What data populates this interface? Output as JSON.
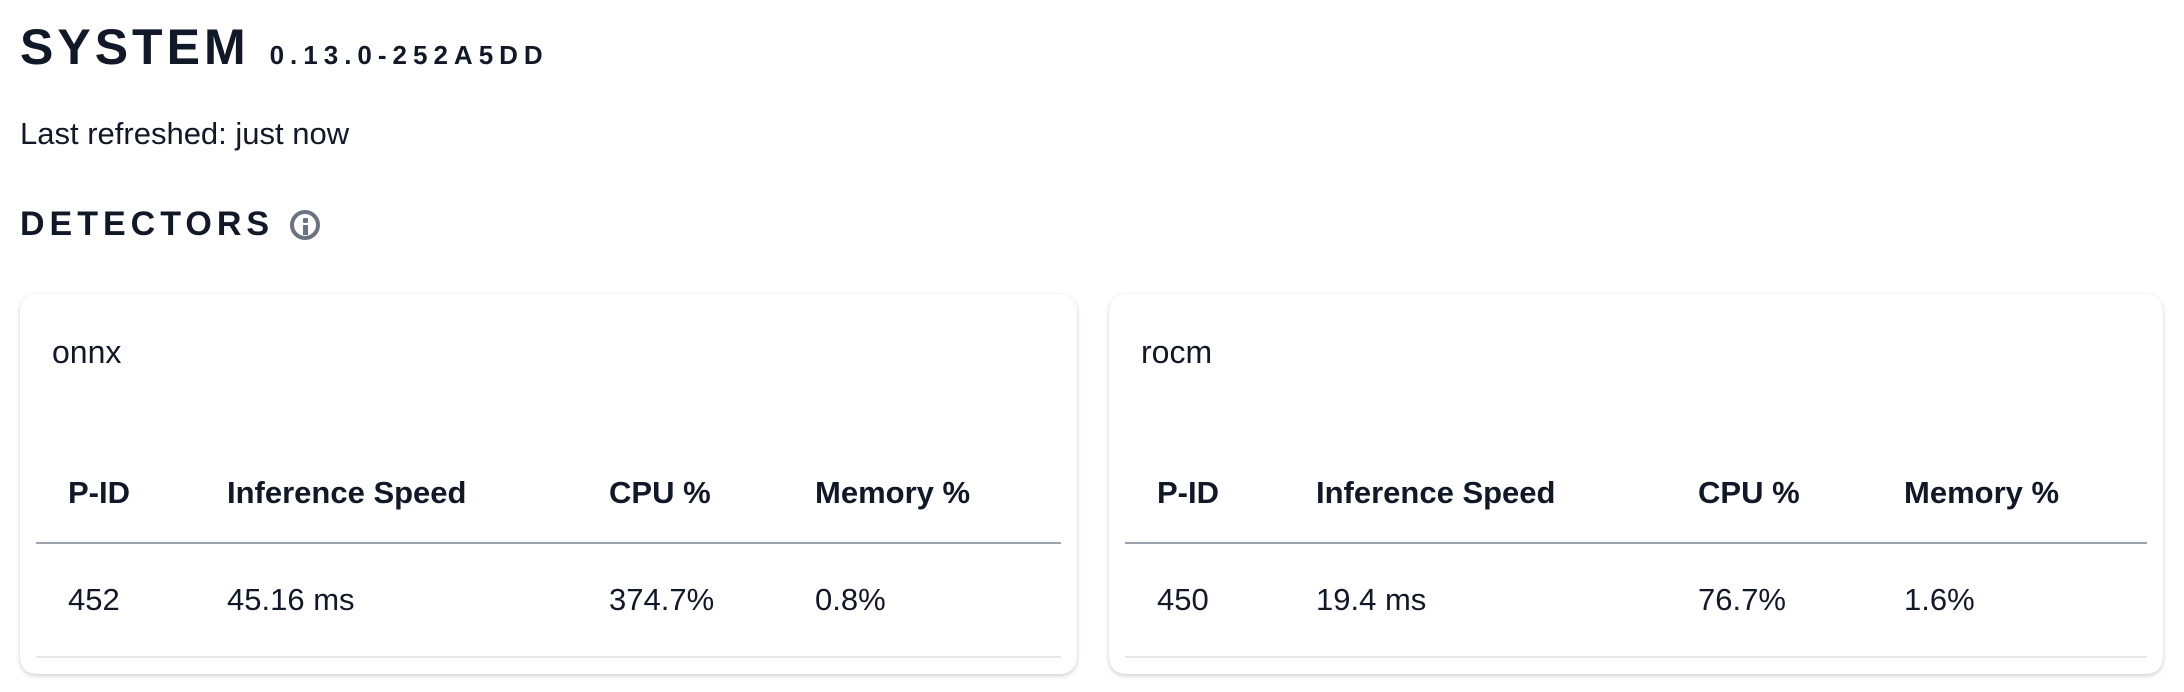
{
  "header": {
    "title": "SYSTEM",
    "version": "0.13.0-252A5DD",
    "last_refreshed": "Last refreshed: just now"
  },
  "detectors": {
    "section_title": "DETECTORS",
    "info_icon": "info-circle-icon",
    "columns": [
      "P-ID",
      "Inference Speed",
      "CPU %",
      "Memory %"
    ],
    "cards": [
      {
        "name": "onnx",
        "row": {
          "pid": "452",
          "inference_speed": "45.16 ms",
          "cpu": "374.7%",
          "memory": "0.8%"
        }
      },
      {
        "name": "rocm",
        "row": {
          "pid": "450",
          "inference_speed": "19.4 ms",
          "cpu": "76.7%",
          "memory": "1.6%"
        }
      }
    ]
  },
  "colors": {
    "text": "#111827",
    "icon": "#6b7280",
    "header_border": "#9ca3af",
    "row_border": "#e5e7eb"
  }
}
